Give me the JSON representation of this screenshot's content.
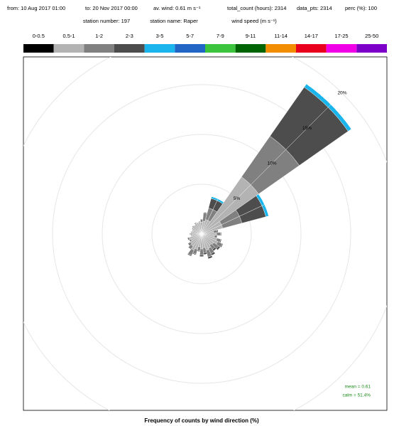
{
  "chart_data": {
    "type": "windrose",
    "info": [
      "from: 10 Aug 2017 01:00",
      "to: 20 Nov 2017 00:00",
      "av. wind: 0.61 m s⁻¹",
      "total_count (hours): 2314",
      "data_pts: 2314",
      "perc (%): 100"
    ],
    "station": [
      "station number: 197",
      "station name: Raper"
    ],
    "legend_title": "wind speed (m s⁻¹)",
    "xlabel": "Frequency of counts by wind direction (%)",
    "annotations": [
      "mean = 0.61",
      "calm = 51.4%"
    ],
    "directions": [
      0,
      10,
      20,
      30,
      40,
      50,
      60,
      70,
      80,
      90,
      100,
      110,
      120,
      130,
      140,
      150,
      160,
      170,
      180,
      190,
      200,
      210,
      220,
      230,
      240,
      250,
      260,
      270,
      280,
      290,
      300,
      310,
      320,
      330,
      340,
      350
    ],
    "rlim": [
      0,
      20
    ],
    "rticks": [
      {
        "value": 5,
        "label": "5%"
      },
      {
        "value": 10,
        "label": "10%"
      },
      {
        "value": 15,
        "label": "15%"
      },
      {
        "value": 20,
        "label": "20%"
      }
    ],
    "series": [
      {
        "name": "0-0.5",
        "color": "#000000",
        "values": [
          0,
          0,
          0,
          0,
          0,
          0,
          0,
          0,
          0,
          0,
          0,
          0,
          0,
          0,
          0,
          0,
          0,
          0,
          0,
          0,
          0,
          0,
          0,
          0,
          0,
          0,
          0,
          0,
          0,
          0,
          0,
          0,
          0,
          0,
          0,
          0
        ]
      },
      {
        "name": "0.5-1",
        "color": "#b3b3b3",
        "values": [
          1.2,
          1.3,
          1.5,
          1.5,
          7,
          7,
          2.2,
          2.2,
          1.2,
          1.5,
          1.3,
          1.6,
          1.8,
          1.5,
          1.4,
          1.6,
          1.7,
          1.4,
          1.5,
          1.3,
          1.6,
          1.8,
          1.5,
          1.4,
          1.2,
          1.3,
          1.0,
          1.1,
          1.0,
          0.9,
          1.0,
          1.1,
          1.0,
          1.2,
          1.1,
          1.2
        ]
      },
      {
        "name": "1-2",
        "color": "#808080",
        "values": [
          0.3,
          0.8,
          1.2,
          1.2,
          5,
          5,
          2,
          2,
          0.4,
          0.4,
          0.3,
          0.4,
          0.5,
          0.6,
          0.5,
          0.6,
          0.7,
          0.5,
          0.6,
          0.4,
          0.5,
          0.6,
          0.4,
          0.3,
          0.2,
          0.2,
          0.1,
          0.1,
          0.1,
          0.1,
          0.1,
          0.1,
          0.1,
          0.1,
          0.1,
          0.1
        ]
      },
      {
        "name": "2-3",
        "color": "#4d4d4d",
        "values": [
          0,
          0.1,
          1,
          1,
          6,
          6,
          2.5,
          2.5,
          0.1,
          0.1,
          0,
          0.1,
          0.1,
          0.2,
          0.2,
          0.2,
          0.2,
          0.2,
          0.2,
          0.1,
          0.1,
          0.1,
          0,
          0,
          0,
          0,
          0,
          0,
          0,
          0,
          0,
          0,
          0,
          0,
          0,
          0
        ]
      },
      {
        "name": "3-5",
        "color": "#19b5ec",
        "values": [
          0,
          0,
          0.2,
          0.2,
          0.4,
          0.4,
          0.3,
          0.3,
          0,
          0,
          0,
          0,
          0,
          0,
          0,
          0,
          0,
          0,
          0,
          0,
          0,
          0,
          0,
          0,
          0,
          0,
          0,
          0,
          0,
          0,
          0,
          0,
          0,
          0,
          0,
          0
        ]
      },
      {
        "name": "5-7",
        "color": "#2166c4",
        "values": [
          0,
          0,
          0,
          0,
          0,
          0,
          0,
          0,
          0,
          0,
          0,
          0,
          0,
          0,
          0,
          0,
          0,
          0,
          0,
          0,
          0,
          0,
          0,
          0,
          0,
          0,
          0,
          0,
          0,
          0,
          0,
          0,
          0,
          0,
          0,
          0
        ]
      },
      {
        "name": "7-9",
        "color": "#3cc43c",
        "values": [
          0,
          0,
          0,
          0,
          0,
          0,
          0,
          0,
          0,
          0,
          0,
          0,
          0,
          0,
          0,
          0,
          0,
          0,
          0,
          0,
          0,
          0,
          0,
          0,
          0,
          0,
          0,
          0,
          0,
          0,
          0,
          0,
          0,
          0,
          0,
          0
        ]
      },
      {
        "name": "9-11",
        "color": "#006400",
        "values": [
          0,
          0,
          0,
          0,
          0,
          0,
          0,
          0,
          0,
          0,
          0,
          0,
          0,
          0,
          0,
          0,
          0,
          0,
          0,
          0,
          0,
          0,
          0,
          0,
          0,
          0,
          0,
          0,
          0,
          0,
          0,
          0,
          0,
          0,
          0,
          0
        ]
      },
      {
        "name": "11-14",
        "color": "#f28c00",
        "values": [
          0,
          0,
          0,
          0,
          0,
          0,
          0,
          0,
          0,
          0,
          0,
          0,
          0,
          0,
          0,
          0,
          0,
          0,
          0,
          0,
          0,
          0,
          0,
          0,
          0,
          0,
          0,
          0,
          0,
          0,
          0,
          0,
          0,
          0,
          0,
          0
        ]
      },
      {
        "name": "14-17",
        "color": "#e8001c",
        "values": [
          0,
          0,
          0,
          0,
          0,
          0,
          0,
          0,
          0,
          0,
          0,
          0,
          0,
          0,
          0,
          0,
          0,
          0,
          0,
          0,
          0,
          0,
          0,
          0,
          0,
          0,
          0,
          0,
          0,
          0,
          0,
          0,
          0,
          0,
          0,
          0
        ]
      },
      {
        "name": "17-25",
        "color": "#f000e6",
        "values": [
          0,
          0,
          0,
          0,
          0,
          0,
          0,
          0,
          0,
          0,
          0,
          0,
          0,
          0,
          0,
          0,
          0,
          0,
          0,
          0,
          0,
          0,
          0,
          0,
          0,
          0,
          0,
          0,
          0,
          0,
          0,
          0,
          0,
          0,
          0,
          0
        ]
      },
      {
        "name": "25-50",
        "color": "#7d00c8",
        "values": [
          0,
          0,
          0,
          0,
          0,
          0,
          0,
          0,
          0,
          0,
          0,
          0,
          0,
          0,
          0,
          0,
          0,
          0,
          0,
          0,
          0,
          0,
          0,
          0,
          0,
          0,
          0,
          0,
          0,
          0,
          0,
          0,
          0,
          0,
          0,
          0
        ]
      }
    ]
  }
}
